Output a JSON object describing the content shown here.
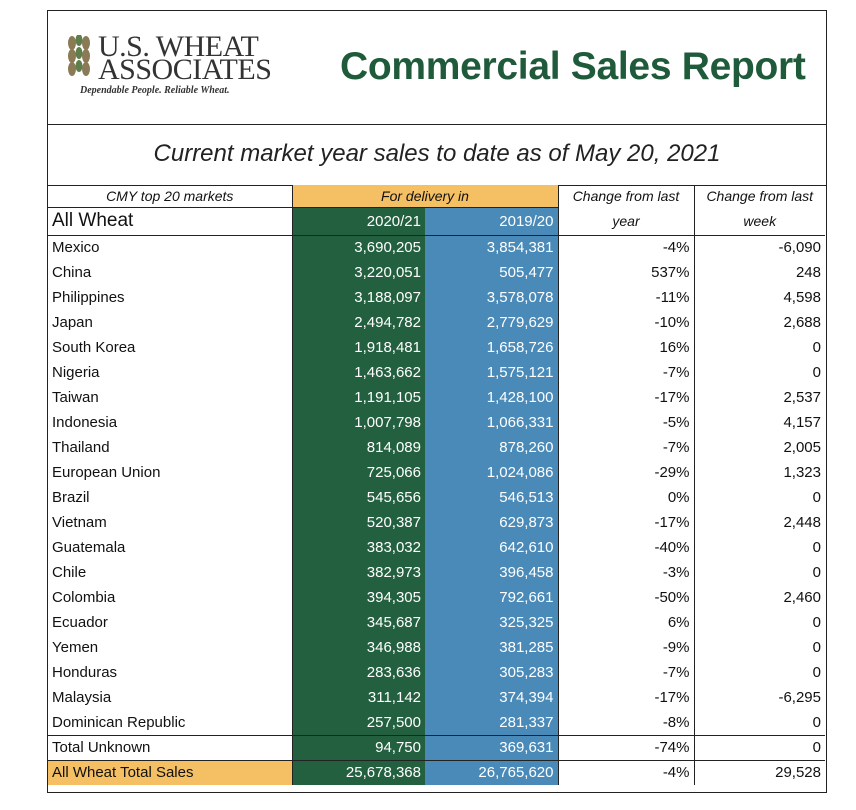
{
  "header": {
    "logo": {
      "line1": "U.S. WHEAT",
      "line2": "ASSOCIATES",
      "tagline": "Dependable People. Reliable Wheat."
    },
    "title": "Commercial Sales Report"
  },
  "subtitle": "Current market year sales to date as of May 20, 2021",
  "colors": {
    "title_green": "#1f5a3a",
    "col_2020_21_bg": "#23603f",
    "col_2019_20_bg": "#4a8ab8",
    "highlight_orange": "#f5bf63"
  },
  "table": {
    "header": {
      "markets_label": "CMY top 20 markets",
      "delivery_label": "For delivery in",
      "change_year_label_1": "Change from last",
      "change_year_label_2": "year",
      "change_week_label_1": "Change from last",
      "change_week_label_2": "week",
      "category": "All Wheat",
      "col_2020_21": "2020/21",
      "col_2019_20": "2019/20"
    },
    "rows": [
      {
        "market": "Mexico",
        "y2020_21": "3,690,205",
        "y2019_20": "3,854,381",
        "change_year": "-4%",
        "change_week": "-6,090"
      },
      {
        "market": "China",
        "y2020_21": "3,220,051",
        "y2019_20": "505,477",
        "change_year": "537%",
        "change_week": "248"
      },
      {
        "market": "Philippines",
        "y2020_21": "3,188,097",
        "y2019_20": "3,578,078",
        "change_year": "-11%",
        "change_week": "4,598"
      },
      {
        "market": "Japan",
        "y2020_21": "2,494,782",
        "y2019_20": "2,779,629",
        "change_year": "-10%",
        "change_week": "2,688"
      },
      {
        "market": "South Korea",
        "y2020_21": "1,918,481",
        "y2019_20": "1,658,726",
        "change_year": "16%",
        "change_week": "0"
      },
      {
        "market": "Nigeria",
        "y2020_21": "1,463,662",
        "y2019_20": "1,575,121",
        "change_year": "-7%",
        "change_week": "0"
      },
      {
        "market": "Taiwan",
        "y2020_21": "1,191,105",
        "y2019_20": "1,428,100",
        "change_year": "-17%",
        "change_week": "2,537"
      },
      {
        "market": "Indonesia",
        "y2020_21": "1,007,798",
        "y2019_20": "1,066,331",
        "change_year": "-5%",
        "change_week": "4,157"
      },
      {
        "market": "Thailand",
        "y2020_21": "814,089",
        "y2019_20": "878,260",
        "change_year": "-7%",
        "change_week": "2,005"
      },
      {
        "market": "European Union",
        "y2020_21": "725,066",
        "y2019_20": "1,024,086",
        "change_year": "-29%",
        "change_week": "1,323"
      },
      {
        "market": "Brazil",
        "y2020_21": "545,656",
        "y2019_20": "546,513",
        "change_year": "0%",
        "change_week": "0"
      },
      {
        "market": "Vietnam",
        "y2020_21": "520,387",
        "y2019_20": "629,873",
        "change_year": "-17%",
        "change_week": "2,448"
      },
      {
        "market": "Guatemala",
        "y2020_21": "383,032",
        "y2019_20": "642,610",
        "change_year": "-40%",
        "change_week": "0"
      },
      {
        "market": "Chile",
        "y2020_21": "382,973",
        "y2019_20": "396,458",
        "change_year": "-3%",
        "change_week": "0"
      },
      {
        "market": "Colombia",
        "y2020_21": "394,305",
        "y2019_20": "792,661",
        "change_year": "-50%",
        "change_week": "2,460"
      },
      {
        "market": "Ecuador",
        "y2020_21": "345,687",
        "y2019_20": "325,325",
        "change_year": "6%",
        "change_week": "0"
      },
      {
        "market": "Yemen",
        "y2020_21": "346,988",
        "y2019_20": "381,285",
        "change_year": "-9%",
        "change_week": "0"
      },
      {
        "market": "Honduras",
        "y2020_21": "283,636",
        "y2019_20": "305,283",
        "change_year": "-7%",
        "change_week": "0"
      },
      {
        "market": "Malaysia",
        "y2020_21": "311,142",
        "y2019_20": "374,394",
        "change_year": "-17%",
        "change_week": "-6,295"
      },
      {
        "market": "Dominican Republic",
        "y2020_21": "257,500",
        "y2019_20": "281,337",
        "change_year": "-8%",
        "change_week": "0"
      }
    ],
    "unknown": {
      "market": "Total Unknown",
      "y2020_21": "94,750",
      "y2019_20": "369,631",
      "change_year": "-74%",
      "change_week": "0"
    },
    "total": {
      "market": "All Wheat Total Sales",
      "y2020_21": "25,678,368",
      "y2019_20": "26,765,620",
      "change_year": "-4%",
      "change_week": "29,528"
    }
  }
}
